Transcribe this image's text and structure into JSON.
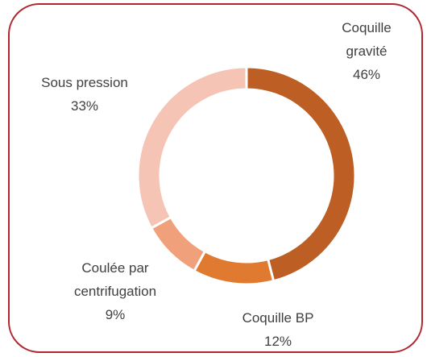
{
  "chart_data": {
    "type": "donut",
    "categories": [
      "Coquille gravité",
      "Coquille BP",
      "Coulée par centrifugation",
      "Sous pression"
    ],
    "values": [
      46,
      12,
      9,
      33
    ],
    "value_labels": [
      "46%",
      "12%",
      "9%",
      "33%"
    ],
    "colors": [
      "#bd5f24",
      "#e07a30",
      "#f0a07a",
      "#f5c4b4"
    ]
  }
}
